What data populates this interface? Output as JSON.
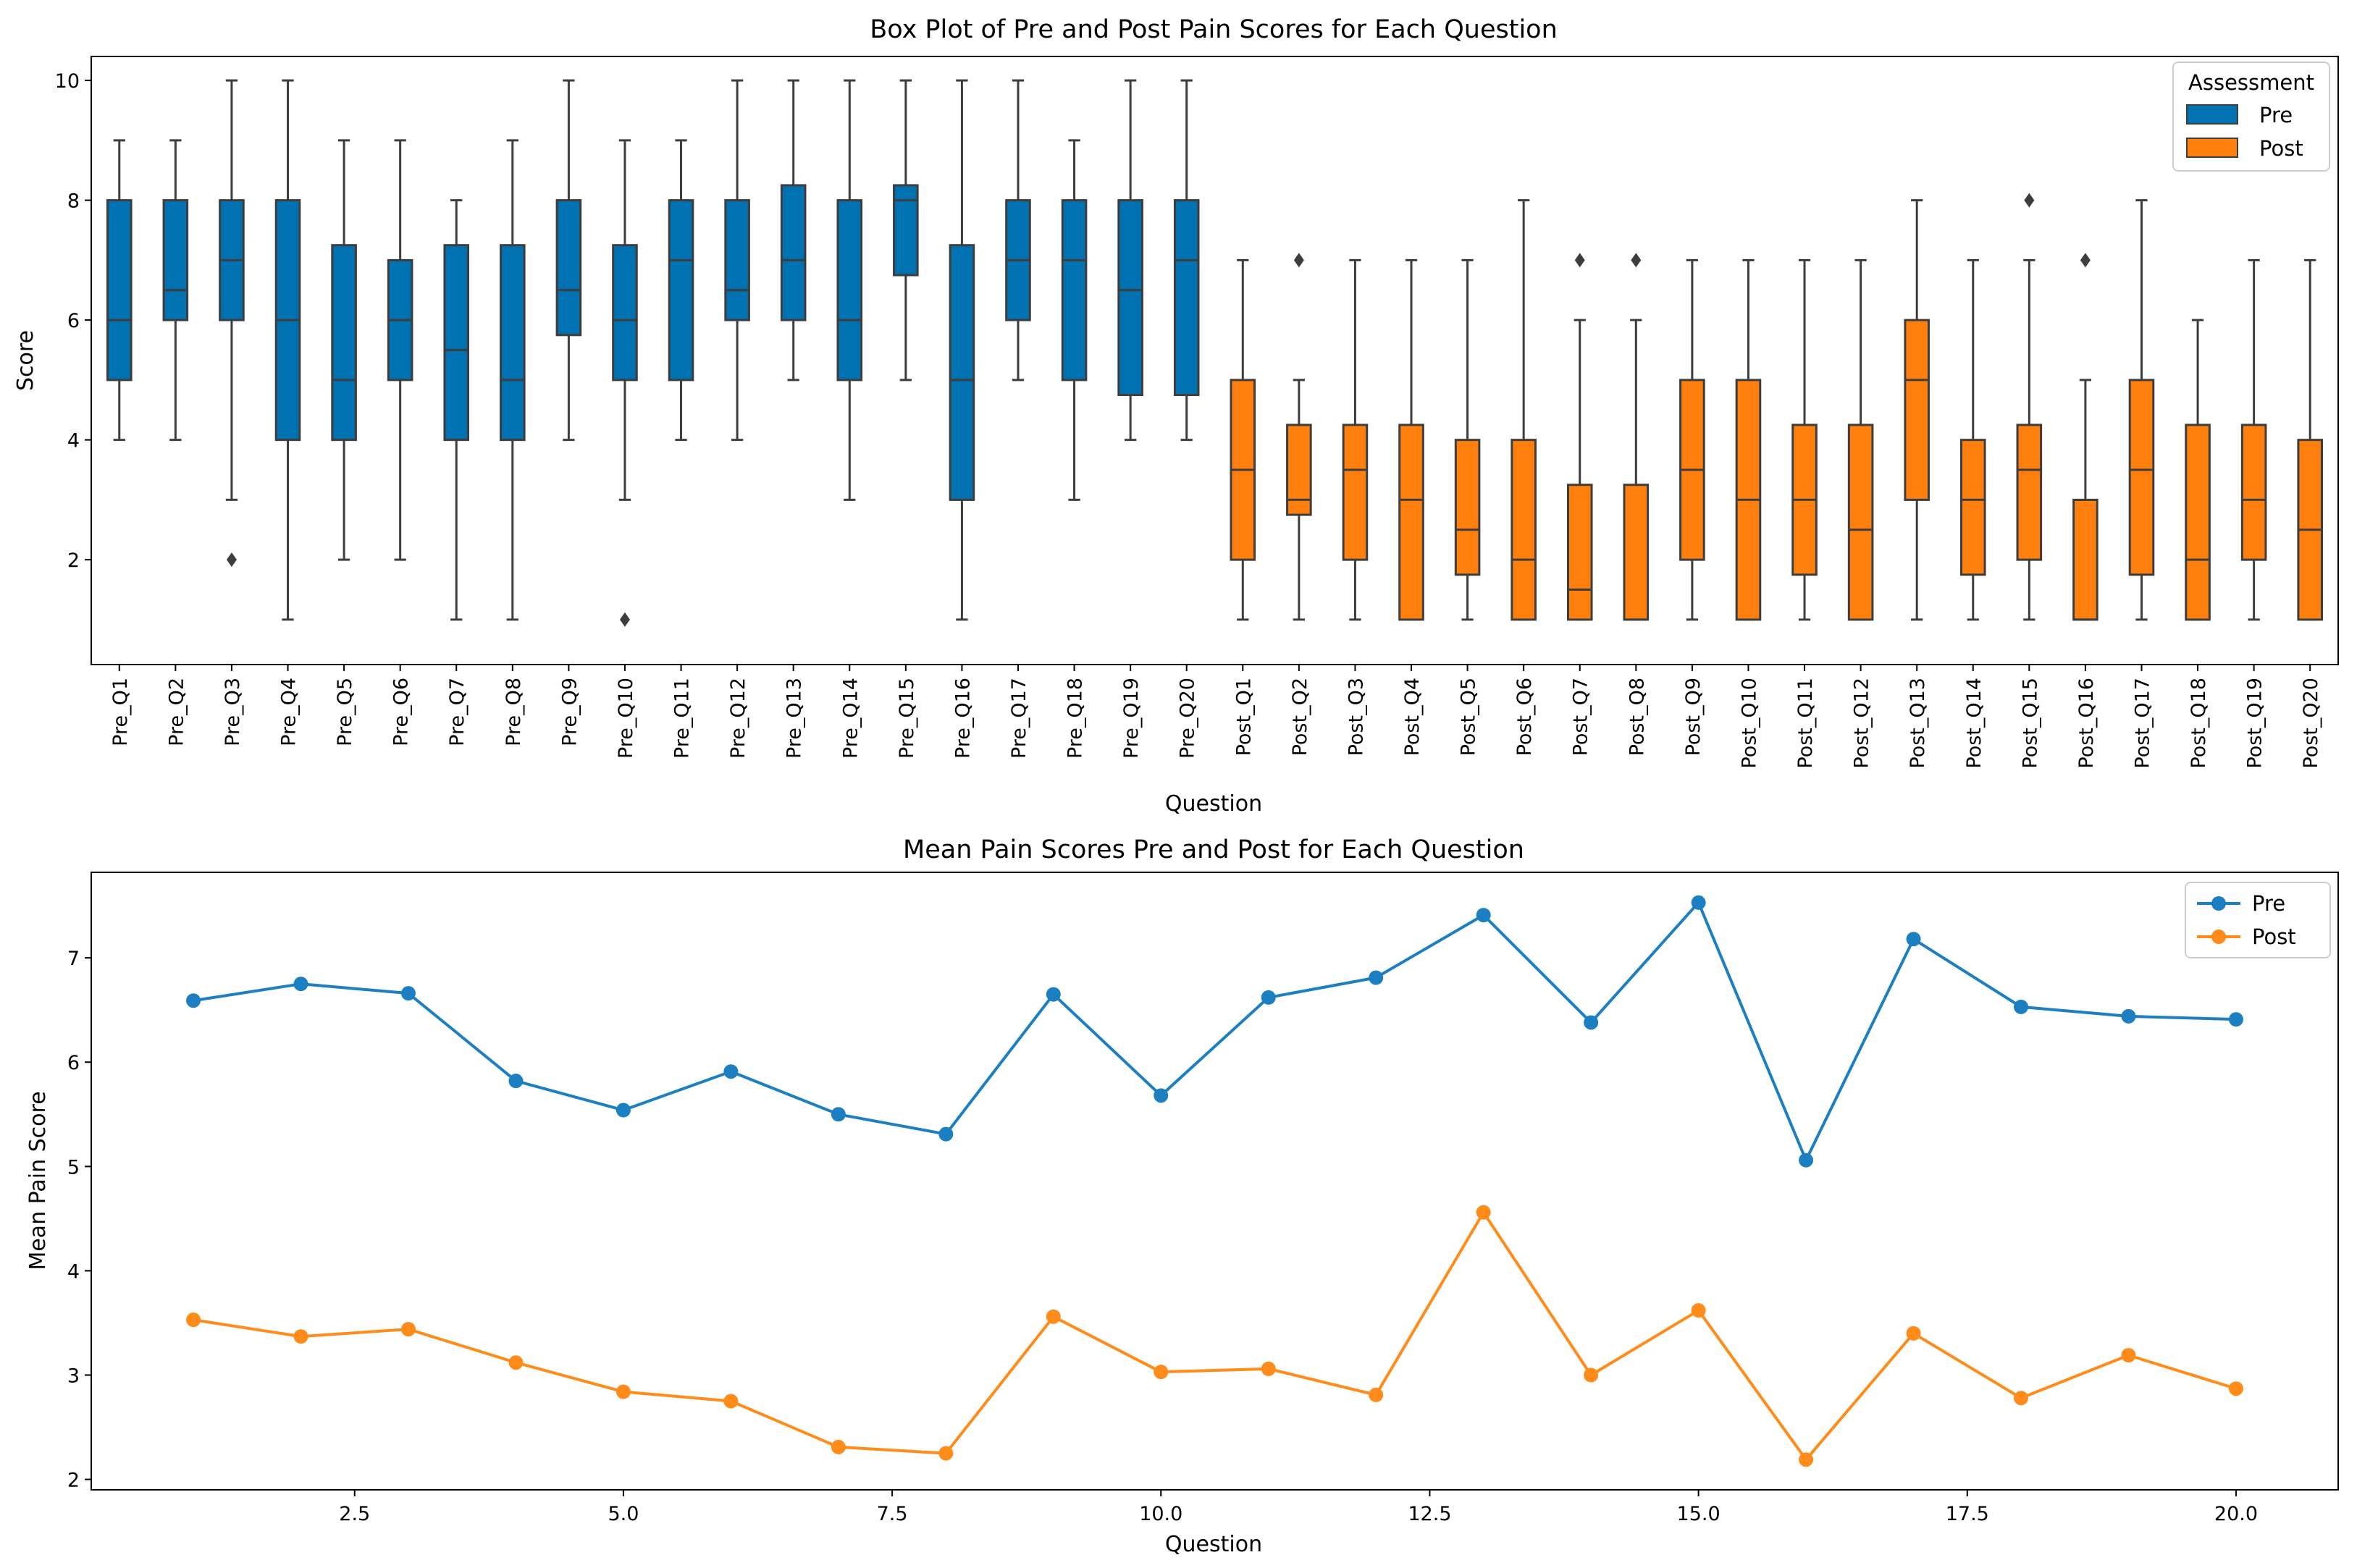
{
  "colors": {
    "pre": "#0072B2",
    "post": "#FF7F0E",
    "pre_line": "#1B7FC1",
    "post_line": "#FF8C1A"
  },
  "chart_data": [
    {
      "type": "box",
      "title": "Box Plot of Pre and Post Pain Scores for Each Question",
      "xlabel": "Question",
      "ylabel": "Score",
      "ylim": [
        0.25,
        10.4
      ],
      "yticks": [
        2,
        4,
        6,
        8,
        10
      ],
      "legend": {
        "title": "Assessment",
        "position": "top-right",
        "entries": [
          "Pre",
          "Post"
        ]
      },
      "boxes": [
        {
          "label": "Pre_Q1",
          "group": "Pre",
          "whislo": 4,
          "q1": 5,
          "med": 6,
          "q3": 8,
          "whishi": 9,
          "fliers": []
        },
        {
          "label": "Pre_Q2",
          "group": "Pre",
          "whislo": 4,
          "q1": 6,
          "med": 6.5,
          "q3": 8,
          "whishi": 9,
          "fliers": []
        },
        {
          "label": "Pre_Q3",
          "group": "Pre",
          "whislo": 3,
          "q1": 6,
          "med": 7,
          "q3": 8,
          "whishi": 10,
          "fliers": [
            2
          ]
        },
        {
          "label": "Pre_Q4",
          "group": "Pre",
          "whislo": 1,
          "q1": 4,
          "med": 6,
          "q3": 8,
          "whishi": 10,
          "fliers": []
        },
        {
          "label": "Pre_Q5",
          "group": "Pre",
          "whislo": 2,
          "q1": 4,
          "med": 5,
          "q3": 7.25,
          "whishi": 9,
          "fliers": []
        },
        {
          "label": "Pre_Q6",
          "group": "Pre",
          "whislo": 2,
          "q1": 5,
          "med": 6,
          "q3": 7,
          "whishi": 9,
          "fliers": []
        },
        {
          "label": "Pre_Q7",
          "group": "Pre",
          "whislo": 1,
          "q1": 4,
          "med": 5.5,
          "q3": 7.25,
          "whishi": 8,
          "fliers": []
        },
        {
          "label": "Pre_Q8",
          "group": "Pre",
          "whislo": 1,
          "q1": 4,
          "med": 5,
          "q3": 7.25,
          "whishi": 9,
          "fliers": []
        },
        {
          "label": "Pre_Q9",
          "group": "Pre",
          "whislo": 4,
          "q1": 5.75,
          "med": 6.5,
          "q3": 8,
          "whishi": 10,
          "fliers": []
        },
        {
          "label": "Pre_Q10",
          "group": "Pre",
          "whislo": 3,
          "q1": 5,
          "med": 6,
          "q3": 7.25,
          "whishi": 9,
          "fliers": [
            1
          ]
        },
        {
          "label": "Pre_Q11",
          "group": "Pre",
          "whislo": 4,
          "q1": 5,
          "med": 7,
          "q3": 8,
          "whishi": 9,
          "fliers": []
        },
        {
          "label": "Pre_Q12",
          "group": "Pre",
          "whislo": 4,
          "q1": 6,
          "med": 6.5,
          "q3": 8,
          "whishi": 10,
          "fliers": []
        },
        {
          "label": "Pre_Q13",
          "group": "Pre",
          "whislo": 5,
          "q1": 6,
          "med": 7,
          "q3": 8.25,
          "whishi": 10,
          "fliers": []
        },
        {
          "label": "Pre_Q14",
          "group": "Pre",
          "whislo": 3,
          "q1": 5,
          "med": 6,
          "q3": 8,
          "whishi": 10,
          "fliers": []
        },
        {
          "label": "Pre_Q15",
          "group": "Pre",
          "whislo": 5,
          "q1": 6.75,
          "med": 8,
          "q3": 8.25,
          "whishi": 10,
          "fliers": []
        },
        {
          "label": "Pre_Q16",
          "group": "Pre",
          "whislo": 1,
          "q1": 3,
          "med": 5,
          "q3": 7.25,
          "whishi": 10,
          "fliers": []
        },
        {
          "label": "Pre_Q17",
          "group": "Pre",
          "whislo": 5,
          "q1": 6,
          "med": 7,
          "q3": 8,
          "whishi": 10,
          "fliers": []
        },
        {
          "label": "Pre_Q18",
          "group": "Pre",
          "whislo": 3,
          "q1": 5,
          "med": 7,
          "q3": 8,
          "whishi": 9,
          "fliers": []
        },
        {
          "label": "Pre_Q19",
          "group": "Pre",
          "whislo": 4,
          "q1": 4.75,
          "med": 6.5,
          "q3": 8,
          "whishi": 10,
          "fliers": []
        },
        {
          "label": "Pre_Q20",
          "group": "Pre",
          "whislo": 4,
          "q1": 4.75,
          "med": 7,
          "q3": 8,
          "whishi": 10,
          "fliers": []
        },
        {
          "label": "Post_Q1",
          "group": "Post",
          "whislo": 1,
          "q1": 2,
          "med": 3.5,
          "q3": 5,
          "whishi": 7,
          "fliers": []
        },
        {
          "label": "Post_Q2",
          "group": "Post",
          "whislo": 1,
          "q1": 2.75,
          "med": 3,
          "q3": 4.25,
          "whishi": 5,
          "fliers": [
            7
          ]
        },
        {
          "label": "Post_Q3",
          "group": "Post",
          "whislo": 1,
          "q1": 2,
          "med": 3.5,
          "q3": 4.25,
          "whishi": 7,
          "fliers": []
        },
        {
          "label": "Post_Q4",
          "group": "Post",
          "whislo": 1,
          "q1": 1,
          "med": 3,
          "q3": 4.25,
          "whishi": 7,
          "fliers": []
        },
        {
          "label": "Post_Q5",
          "group": "Post",
          "whislo": 1,
          "q1": 1.75,
          "med": 2.5,
          "q3": 4,
          "whishi": 7,
          "fliers": []
        },
        {
          "label": "Post_Q6",
          "group": "Post",
          "whislo": 1,
          "q1": 1,
          "med": 2,
          "q3": 4,
          "whishi": 8,
          "fliers": []
        },
        {
          "label": "Post_Q7",
          "group": "Post",
          "whislo": 1,
          "q1": 1,
          "med": 1.5,
          "q3": 3.25,
          "whishi": 6,
          "fliers": [
            7
          ]
        },
        {
          "label": "Post_Q8",
          "group": "Post",
          "whislo": 1,
          "q1": 1,
          "med": 1,
          "q3": 3.25,
          "whishi": 6,
          "fliers": [
            7
          ]
        },
        {
          "label": "Post_Q9",
          "group": "Post",
          "whislo": 1,
          "q1": 2,
          "med": 3.5,
          "q3": 5,
          "whishi": 7,
          "fliers": []
        },
        {
          "label": "Post_Q10",
          "group": "Post",
          "whislo": 1,
          "q1": 1,
          "med": 3,
          "q3": 5,
          "whishi": 7,
          "fliers": []
        },
        {
          "label": "Post_Q11",
          "group": "Post",
          "whislo": 1,
          "q1": 1.75,
          "med": 3,
          "q3": 4.25,
          "whishi": 7,
          "fliers": []
        },
        {
          "label": "Post_Q12",
          "group": "Post",
          "whislo": 1,
          "q1": 1,
          "med": 2.5,
          "q3": 4.25,
          "whishi": 7,
          "fliers": []
        },
        {
          "label": "Post_Q13",
          "group": "Post",
          "whislo": 1,
          "q1": 3,
          "med": 5,
          "q3": 6,
          "whishi": 8,
          "fliers": []
        },
        {
          "label": "Post_Q14",
          "group": "Post",
          "whislo": 1,
          "q1": 1.75,
          "med": 3,
          "q3": 4,
          "whishi": 7,
          "fliers": []
        },
        {
          "label": "Post_Q15",
          "group": "Post",
          "whislo": 1,
          "q1": 2,
          "med": 3.5,
          "q3": 4.25,
          "whishi": 7,
          "fliers": [
            8
          ]
        },
        {
          "label": "Post_Q16",
          "group": "Post",
          "whislo": 1,
          "q1": 1,
          "med": 1,
          "q3": 3,
          "whishi": 5,
          "fliers": [
            7
          ]
        },
        {
          "label": "Post_Q17",
          "group": "Post",
          "whislo": 1,
          "q1": 1.75,
          "med": 3.5,
          "q3": 5,
          "whishi": 8,
          "fliers": []
        },
        {
          "label": "Post_Q18",
          "group": "Post",
          "whislo": 1,
          "q1": 1,
          "med": 2,
          "q3": 4.25,
          "whishi": 6,
          "fliers": []
        },
        {
          "label": "Post_Q19",
          "group": "Post",
          "whislo": 1,
          "q1": 2,
          "med": 3,
          "q3": 4.25,
          "whishi": 7,
          "fliers": []
        },
        {
          "label": "Post_Q20",
          "group": "Post",
          "whislo": 1,
          "q1": 1,
          "med": 2.5,
          "q3": 4,
          "whishi": 7,
          "fliers": []
        }
      ]
    },
    {
      "type": "line",
      "title": "Mean Pain Scores Pre and Post for Each Question",
      "xlabel": "Question",
      "ylabel": "Mean Pain Score",
      "xlim": [
        0.05,
        20.95
      ],
      "ylim": [
        1.9,
        7.82
      ],
      "xticks": [
        2.5,
        5.0,
        7.5,
        10.0,
        12.5,
        15.0,
        17.5,
        20.0
      ],
      "xtick_labels": [
        "2.5",
        "5.0",
        "7.5",
        "10.0",
        "12.5",
        "15.0",
        "17.5",
        "20.0"
      ],
      "yticks": [
        2,
        3,
        4,
        5,
        6,
        7
      ],
      "legend_position": "top-right",
      "x": [
        1,
        2,
        3,
        4,
        5,
        6,
        7,
        8,
        9,
        10,
        11,
        12,
        13,
        14,
        15,
        16,
        17,
        18,
        19,
        20
      ],
      "series": [
        {
          "name": "Pre",
          "values": [
            6.59,
            6.75,
            6.66,
            5.82,
            5.54,
            5.91,
            5.5,
            5.31,
            6.65,
            5.68,
            6.62,
            6.81,
            7.41,
            6.38,
            7.53,
            5.06,
            7.18,
            6.53,
            6.44,
            6.41
          ]
        },
        {
          "name": "Post",
          "values": [
            3.53,
            3.37,
            3.44,
            3.12,
            2.84,
            2.75,
            2.31,
            2.25,
            3.56,
            3.03,
            3.06,
            2.81,
            4.56,
            3.0,
            3.62,
            2.19,
            3.4,
            2.78,
            3.19,
            2.87
          ]
        }
      ]
    }
  ]
}
